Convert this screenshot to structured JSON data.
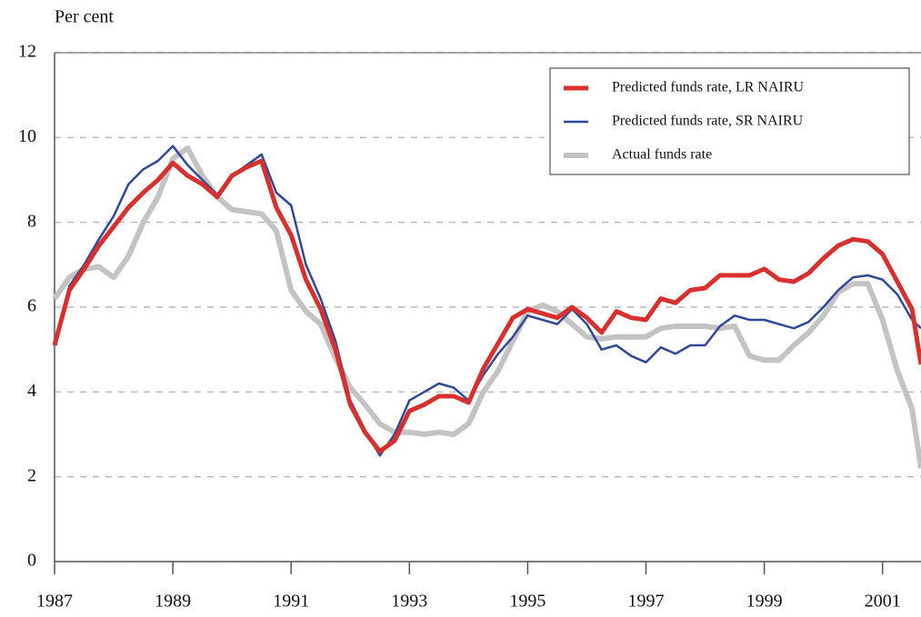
{
  "chart_data": {
    "type": "line",
    "ylabel": "Per cent",
    "x": [
      1987.0,
      1987.25,
      1987.5,
      1987.75,
      1988.0,
      1988.25,
      1988.5,
      1988.75,
      1989.0,
      1989.25,
      1989.5,
      1989.75,
      1990.0,
      1990.25,
      1990.5,
      1990.75,
      1991.0,
      1991.25,
      1991.5,
      1991.75,
      1992.0,
      1992.25,
      1992.5,
      1992.75,
      1993.0,
      1993.25,
      1993.5,
      1993.75,
      1994.0,
      1994.25,
      1994.5,
      1994.75,
      1995.0,
      1995.25,
      1995.5,
      1995.75,
      1996.0,
      1996.25,
      1996.5,
      1996.75,
      1997.0,
      1997.25,
      1997.5,
      1997.75,
      1998.0,
      1998.25,
      1998.5,
      1998.75,
      1999.0,
      1999.25,
      1999.5,
      1999.75,
      2000.0,
      2000.25,
      2000.5,
      2000.75,
      2001.0,
      2001.25,
      2001.5,
      2001.65
    ],
    "series": [
      {
        "name": "Predicted funds rate, LR NAIRU",
        "color": "#d9302e",
        "width": 5,
        "values": [
          5.1,
          6.4,
          6.9,
          7.45,
          7.9,
          8.35,
          8.7,
          9.0,
          9.4,
          9.1,
          8.9,
          8.6,
          9.1,
          9.3,
          9.45,
          8.35,
          7.7,
          6.65,
          5.95,
          5.0,
          3.7,
          3.05,
          2.6,
          2.85,
          3.55,
          3.7,
          3.9,
          3.9,
          3.75,
          4.55,
          5.15,
          5.75,
          5.95,
          5.85,
          5.75,
          6.0,
          5.75,
          5.4,
          5.9,
          5.75,
          5.7,
          6.2,
          6.1,
          6.4,
          6.45,
          6.75,
          6.75,
          6.75,
          6.9,
          6.65,
          6.6,
          6.8,
          7.15,
          7.45,
          7.6,
          7.55,
          7.25,
          6.6,
          5.95,
          4.65
        ]
      },
      {
        "name": "Predicted funds rate, SR NAIRU",
        "color": "#2e4a9b",
        "width": 2.5,
        "values": [
          5.1,
          6.5,
          7.0,
          7.6,
          8.15,
          8.9,
          9.25,
          9.45,
          9.8,
          9.35,
          9.0,
          8.65,
          9.1,
          9.35,
          9.6,
          8.7,
          8.4,
          7.0,
          6.2,
          5.2,
          3.8,
          3.1,
          2.5,
          3.0,
          3.8,
          4.0,
          4.2,
          4.1,
          3.8,
          4.4,
          4.9,
          5.3,
          5.8,
          5.7,
          5.6,
          5.95,
          5.6,
          5.0,
          5.1,
          4.85,
          4.7,
          5.05,
          4.9,
          5.1,
          5.1,
          5.55,
          5.8,
          5.7,
          5.7,
          5.6,
          5.5,
          5.65,
          6.0,
          6.4,
          6.7,
          6.75,
          6.65,
          6.3,
          5.7,
          5.5
        ]
      },
      {
        "name": "Actual funds rate",
        "color": "#c3c3c3",
        "width": 6,
        "values": [
          6.2,
          6.7,
          6.9,
          6.95,
          6.7,
          7.2,
          8.0,
          8.6,
          9.5,
          9.75,
          9.1,
          8.6,
          8.3,
          8.25,
          8.2,
          7.8,
          6.4,
          5.9,
          5.6,
          4.8,
          4.1,
          3.7,
          3.25,
          3.05,
          3.05,
          3.0,
          3.05,
          3.0,
          3.25,
          4.0,
          4.5,
          5.2,
          5.9,
          6.05,
          5.9,
          5.6,
          5.3,
          5.25,
          5.3,
          5.3,
          5.3,
          5.5,
          5.55,
          5.55,
          5.55,
          5.5,
          5.55,
          4.85,
          4.75,
          4.75,
          5.1,
          5.4,
          5.8,
          6.35,
          6.55,
          6.55,
          5.7,
          4.5,
          3.6,
          2.2
        ]
      }
    ],
    "xlim": [
      1987,
      2001.65
    ],
    "xticks": [
      1987,
      1989,
      1991,
      1993,
      1995,
      1997,
      1999,
      2001
    ],
    "ylim": [
      0,
      12
    ],
    "yticks": [
      0,
      2,
      4,
      6,
      8,
      10,
      12
    ],
    "grid": true,
    "legend": "top-right"
  }
}
